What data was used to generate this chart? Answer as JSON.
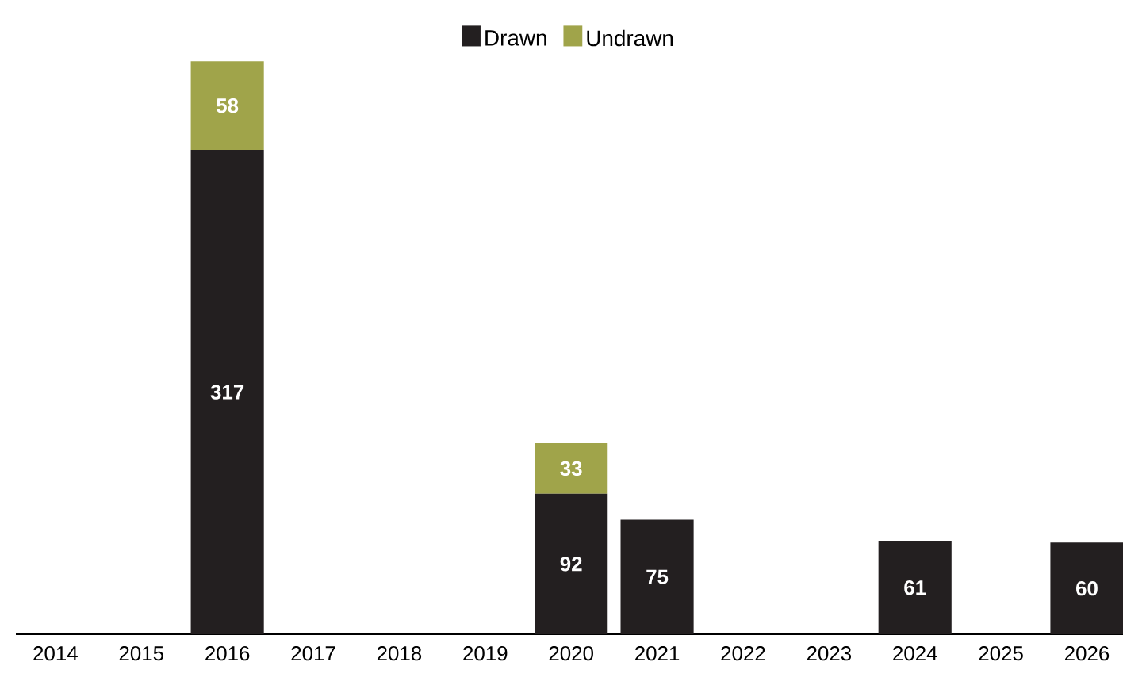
{
  "chart_data": {
    "type": "bar",
    "stacked": true,
    "data_labels": true,
    "legend": "top",
    "categories": [
      "2014",
      "2015",
      "2016",
      "2017",
      "2018",
      "2019",
      "2020",
      "2021",
      "2022",
      "2023",
      "2024",
      "2025",
      "2026"
    ],
    "series": [
      {
        "name": "Drawn",
        "color": "#231f20",
        "values": [
          null,
          null,
          317,
          null,
          null,
          null,
          92,
          75,
          null,
          null,
          61,
          null,
          60
        ]
      },
      {
        "name": "Undrawn",
        "color": "#a0a44a",
        "values": [
          null,
          null,
          58,
          null,
          null,
          null,
          33,
          null,
          null,
          null,
          null,
          null,
          null
        ]
      }
    ]
  }
}
